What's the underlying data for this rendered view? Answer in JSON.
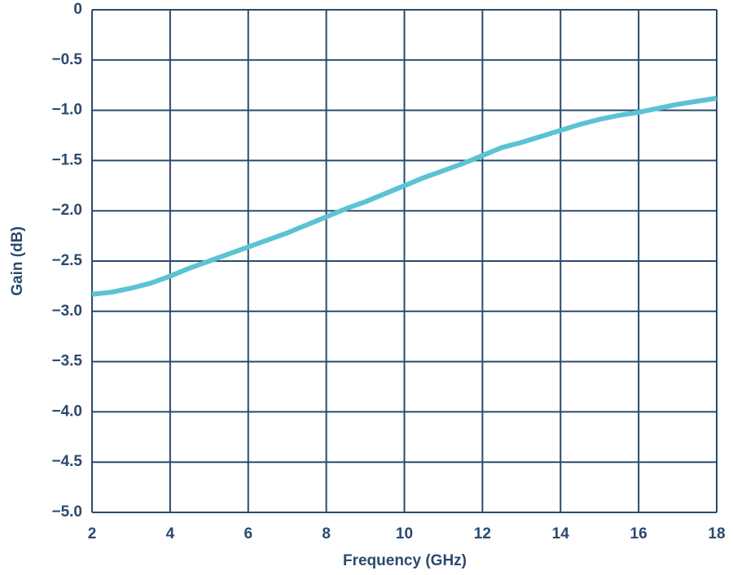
{
  "chart_data": {
    "type": "line",
    "x_label": "Frequency (GHz)",
    "y_label": "Gain (dB)",
    "x": [
      2,
      2.5,
      3,
      3.5,
      4,
      4.5,
      5,
      5.5,
      6,
      6.5,
      7,
      7.5,
      8,
      8.5,
      9,
      9.5,
      10,
      10.5,
      11,
      11.5,
      12,
      12.5,
      13,
      13.5,
      14,
      14.5,
      15,
      15.5,
      16,
      16.5,
      17,
      17.5,
      18
    ],
    "series": [
      {
        "color": "#5bc3d3",
        "values": [
          -2.83,
          -2.81,
          -2.77,
          -2.72,
          -2.65,
          -2.57,
          -2.5,
          -2.43,
          -2.36,
          -2.29,
          -2.22,
          -2.14,
          -2.06,
          -1.98,
          -1.91,
          -1.83,
          -1.75,
          -1.67,
          -1.6,
          -1.53,
          -1.45,
          -1.37,
          -1.32,
          -1.26,
          -1.2,
          -1.14,
          -1.09,
          -1.05,
          -1.02,
          -0.98,
          -0.94,
          -0.91,
          -0.88
        ]
      }
    ],
    "xlim": [
      2,
      18
    ],
    "xticks": [
      2,
      4,
      6,
      8,
      10,
      12,
      14,
      16,
      18
    ],
    "ylim": [
      -5,
      0
    ],
    "yticks": [
      0,
      {
        "value": -0.5,
        "label": "−0.5"
      },
      {
        "value": -1,
        "label": "−1.0"
      },
      {
        "value": -1.5,
        "label": "−1.5"
      },
      {
        "value": -2,
        "label": "−2.0"
      },
      {
        "value": -2.5,
        "label": "−2.5"
      },
      {
        "value": -3,
        "label": "−3.0"
      },
      {
        "value": -3.5,
        "label": "−3.5"
      },
      {
        "value": -4,
        "label": "−4.0"
      },
      {
        "value": -4.5,
        "label": "−4.5"
      },
      {
        "value": -5,
        "label": "−5.0"
      }
    ],
    "grid": true
  }
}
